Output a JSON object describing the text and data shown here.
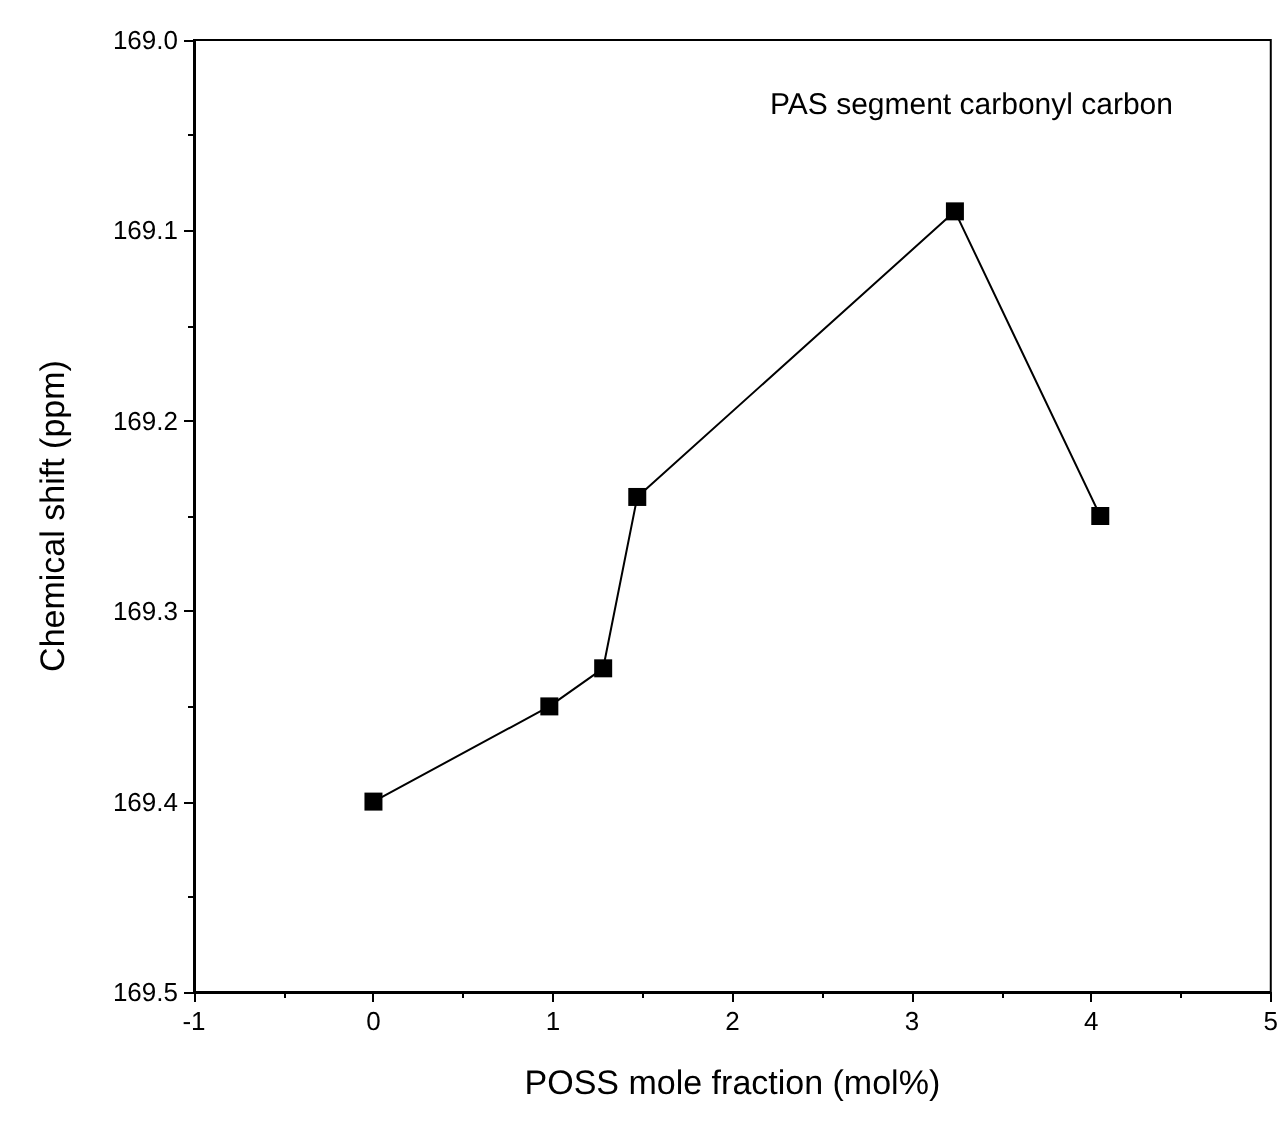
{
  "chart_data": {
    "type": "line",
    "xlabel": "POSS mole fraction (mol%)",
    "ylabel": "Chemical shift (ppm)",
    "annotations": [
      "PAS segment carbonyl carbon"
    ],
    "x": [
      0,
      0.98,
      1.28,
      1.47,
      3.24,
      4.05
    ],
    "series": [
      {
        "color": "#000000",
        "values": [
          169.4,
          169.35,
          169.33,
          169.24,
          169.09,
          169.25
        ]
      }
    ],
    "xlim": [
      -1,
      5
    ],
    "xticks": [
      -1,
      0,
      1,
      2,
      3,
      4,
      5
    ],
    "ylim": [
      169.5,
      169.0
    ],
    "yticks": [
      {
        "value": 169.0,
        "label": "169.0"
      },
      {
        "value": 169.1,
        "label": "169.1"
      },
      {
        "value": 169.2,
        "label": "169.2"
      },
      {
        "value": 169.3,
        "label": "169.3"
      },
      {
        "value": 169.4,
        "label": "169.4"
      },
      {
        "value": 169.5,
        "label": "169.5"
      }
    ],
    "grid": false,
    "marker": "square",
    "line_style": "solid"
  }
}
